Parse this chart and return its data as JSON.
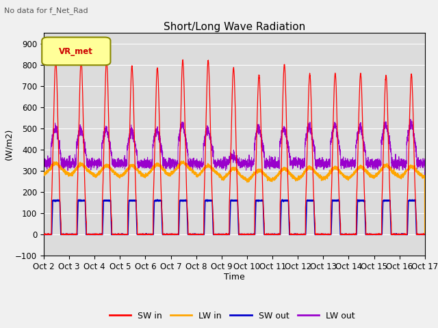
{
  "title": "Short/Long Wave Radiation",
  "subtitle": "No data for f_Net_Rad",
  "xlabel": "Time",
  "ylabel": "(W/m2)",
  "ylim": [
    -100,
    950
  ],
  "yticks": [
    -100,
    0,
    100,
    200,
    300,
    400,
    500,
    600,
    700,
    800,
    900
  ],
  "legend_label": "VR_met",
  "series_labels": [
    "SW in",
    "LW in",
    "SW out",
    "LW out"
  ],
  "series_colors": [
    "#ff0000",
    "#ffa500",
    "#0000cd",
    "#9900cc"
  ],
  "n_days": 15,
  "fig_bg_color": "#f0f0f0",
  "plot_bg_color": "#dcdcdc",
  "grid_color": "#ffffff",
  "xtick_labels": [
    "Oct 2",
    "Oct 3",
    "Oct 4",
    "Oct 5",
    "Oct 6",
    "Oct 7",
    "Oct 8",
    "Oct 9",
    "Oct 10",
    "Oct 11",
    "Oct 12",
    "Oct 13",
    "Oct 14",
    "Oct 15",
    "Oct 16",
    "Oct 17"
  ]
}
